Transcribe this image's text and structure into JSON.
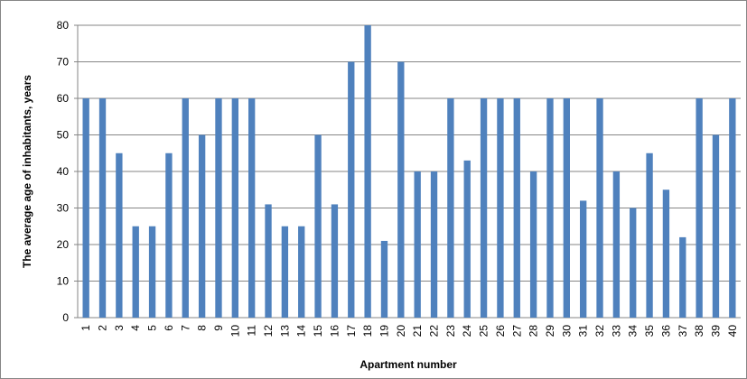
{
  "chart_data": {
    "type": "bar",
    "x_label": "Apartment number",
    "y_label": "The average age of inhabitants, years",
    "categories": [
      "1",
      "2",
      "3",
      "4",
      "5",
      "6",
      "7",
      "8",
      "9",
      "10",
      "11",
      "12",
      "13",
      "14",
      "15",
      "16",
      "17",
      "18",
      "19",
      "20",
      "21",
      "22",
      "23",
      "24",
      "25",
      "26",
      "27",
      "28",
      "29",
      "30",
      "31",
      "32",
      "33",
      "34",
      "35",
      "36",
      "37",
      "38",
      "39",
      "40"
    ],
    "values": [
      60,
      60,
      45,
      25,
      25,
      45,
      60,
      50,
      60,
      60,
      60,
      31,
      25,
      25,
      50,
      31,
      70,
      80,
      21,
      70,
      40,
      40,
      60,
      43,
      60,
      60,
      60,
      40,
      60,
      60,
      32,
      60,
      40,
      30,
      45,
      35,
      22,
      60,
      50,
      60
    ],
    "color": "#4f81bd",
    "ylim": [
      0,
      80
    ],
    "yticks": [
      0,
      10,
      20,
      30,
      40,
      50,
      60,
      70,
      80
    ],
    "grid": true
  }
}
